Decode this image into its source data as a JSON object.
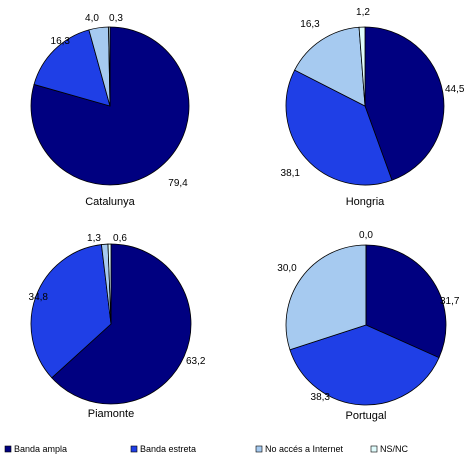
{
  "chart_data": {
    "type": "pie",
    "legend": {
      "position": "bottom",
      "entries": [
        {
          "name": "Banda ampla",
          "color": "#000080"
        },
        {
          "name": "Banda estreta",
          "color": "#1f3fe6"
        },
        {
          "name": "No accés a Internet",
          "color": "#a6caf0"
        },
        {
          "name": "NS/NC",
          "color": "#e0fcfc"
        }
      ]
    },
    "charts": [
      {
        "title": "Catalunya",
        "slices": [
          {
            "name": "Banda ampla",
            "value": 79.4,
            "label": "79,4"
          },
          {
            "name": "Banda estreta",
            "value": 16.3,
            "label": "16,3"
          },
          {
            "name": "No accés a Internet",
            "value": 4.0,
            "label": "4,0"
          },
          {
            "name": "NS/NC",
            "value": 0.3,
            "label": "0,3"
          }
        ]
      },
      {
        "title": "Hongria",
        "slices": [
          {
            "name": "Banda ampla",
            "value": 44.5,
            "label": "44,5"
          },
          {
            "name": "Banda estreta",
            "value": 38.1,
            "label": "38,1"
          },
          {
            "name": "No accés a Internet",
            "value": 16.3,
            "label": "16,3"
          },
          {
            "name": "NS/NC",
            "value": 1.2,
            "label": "1,2"
          }
        ]
      },
      {
        "title": "Piamonte",
        "slices": [
          {
            "name": "Banda ampla",
            "value": 63.2,
            "label": "63,2"
          },
          {
            "name": "Banda estreta",
            "value": 34.8,
            "label": "34,8"
          },
          {
            "name": "No accés a Internet",
            "value": 1.3,
            "label": "1,3"
          },
          {
            "name": "NS/NC",
            "value": 0.6,
            "label": "0,6"
          }
        ]
      },
      {
        "title": "Portugal",
        "slices": [
          {
            "name": "Banda ampla",
            "value": 31.7,
            "label": "31,7"
          },
          {
            "name": "Banda estreta",
            "value": 38.3,
            "label": "38,3"
          },
          {
            "name": "No accés a Internet",
            "value": 30.0,
            "label": "30,0"
          },
          {
            "name": "NS/NC",
            "value": 0.0,
            "label": "0,0"
          }
        ]
      }
    ]
  }
}
